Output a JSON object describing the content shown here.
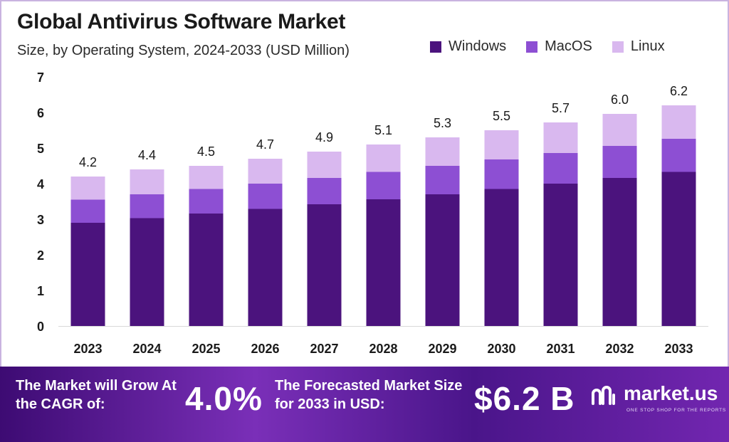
{
  "header": {
    "title": "Global Antivirus Software Market",
    "subtitle": "Size, by Operating System, 2024-2033 (USD Million)"
  },
  "legend": [
    {
      "label": "Windows",
      "color": "#4b137d"
    },
    {
      "label": "MacOS",
      "color": "#8d4fd3"
    },
    {
      "label": "Linux",
      "color": "#d9b8ef"
    }
  ],
  "chart_data": {
    "type": "bar",
    "stacked": true,
    "title": "Global Antivirus Software Market",
    "subtitle": "Size, by Operating System, 2024-2033 (USD Million)",
    "xlabel": "",
    "ylabel": "",
    "ylim": [
      0,
      7
    ],
    "yticks": [
      0,
      1,
      2,
      3,
      4,
      5,
      6,
      7
    ],
    "grid": false,
    "legend_position": "top-right",
    "categories": [
      "2023",
      "2024",
      "2025",
      "2026",
      "2027",
      "2028",
      "2029",
      "2030",
      "2031",
      "2032",
      "2033"
    ],
    "series": [
      {
        "name": "Windows",
        "color": "#4b137d",
        "values": [
          2.9,
          3.03,
          3.16,
          3.29,
          3.42,
          3.56,
          3.7,
          3.85,
          4.0,
          4.16,
          4.33
        ]
      },
      {
        "name": "MacOS",
        "color": "#8d4fd3",
        "values": [
          0.65,
          0.67,
          0.69,
          0.71,
          0.74,
          0.77,
          0.8,
          0.83,
          0.86,
          0.9,
          0.93
        ]
      },
      {
        "name": "Linux",
        "color": "#d9b8ef",
        "values": [
          0.65,
          0.7,
          0.65,
          0.7,
          0.74,
          0.77,
          0.8,
          0.82,
          0.86,
          0.9,
          0.94
        ]
      }
    ],
    "totals": [
      "4.2",
      "4.4",
      "4.5",
      "4.7",
      "4.9",
      "5.1",
      "5.3",
      "5.5",
      "5.7",
      "6.0",
      "6.2"
    ]
  },
  "footer": {
    "cagr_label": "The Market will Grow At the CAGR of:",
    "cagr_value": "4.0%",
    "forecast_label": "The Forecasted Market Size for 2033 in USD:",
    "forecast_value": "$6.2 B"
  },
  "brand": {
    "name": "market.us",
    "tagline": "ONE STOP SHOP FOR THE REPORTS"
  }
}
